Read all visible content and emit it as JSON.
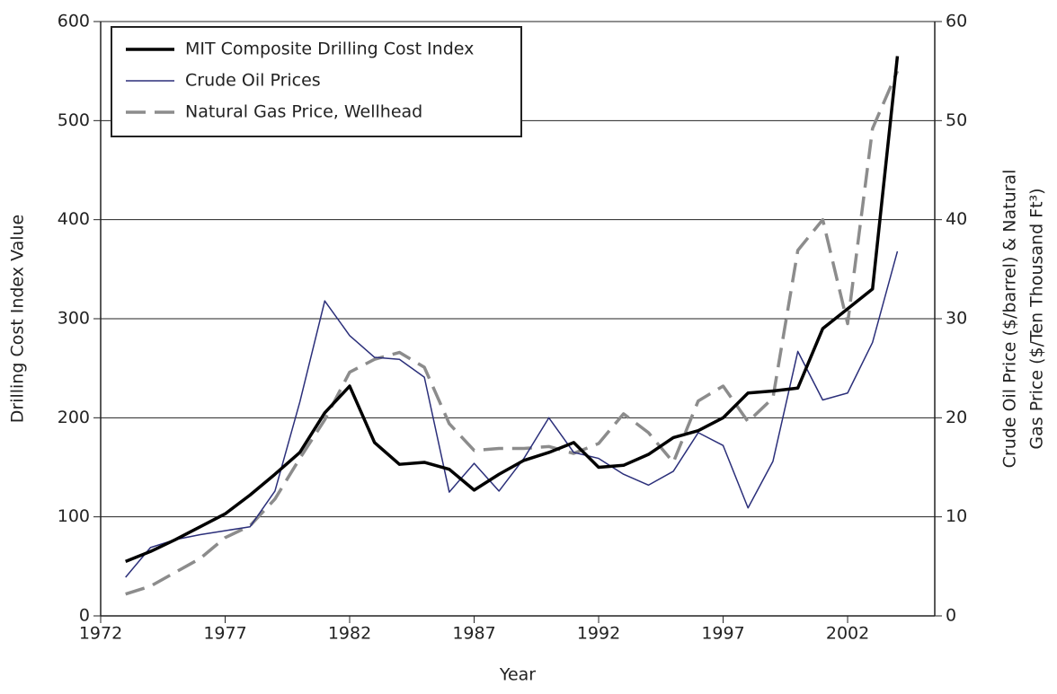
{
  "chart_data": {
    "type": "line",
    "xlabel": "Year",
    "ylabel": "Drilling Cost Index Value",
    "y2label": [
      "Crude Oil Price ($/barrel) & Natural",
      "Gas Price ($/Ten Thousand Ft³)"
    ],
    "x": [
      1973,
      1974,
      1975,
      1976,
      1977,
      1978,
      1979,
      1980,
      1981,
      1982,
      1983,
      1984,
      1985,
      1986,
      1987,
      1988,
      1989,
      1990,
      1991,
      1992,
      1993,
      1994,
      1995,
      1996,
      1997,
      1998,
      1999,
      2000,
      2001,
      2002,
      2003,
      2004
    ],
    "xlim": [
      1972,
      2005.5
    ],
    "xticks": [
      1972,
      1977,
      1982,
      1987,
      1992,
      1997,
      2002
    ],
    "ylim": [
      0,
      600
    ],
    "yticks": [
      0,
      100,
      200,
      300,
      400,
      500,
      600
    ],
    "y2lim": [
      0,
      60
    ],
    "y2ticks": [
      0,
      10,
      20,
      30,
      40,
      50,
      60
    ],
    "grid": true,
    "legend": "upper left",
    "series": [
      {
        "name": "MIT Composite Drilling Cost Index",
        "color": "#000000",
        "style": "solid",
        "width": 3.5,
        "values": [
          55,
          65,
          77,
          90,
          103,
          122,
          143,
          165,
          205,
          232,
          175,
          153,
          155,
          148,
          127,
          143,
          157,
          165,
          175,
          150,
          152,
          163,
          180,
          187,
          200,
          225,
          227,
          230,
          290,
          310,
          330,
          565
        ]
      },
      {
        "name": "Crude Oil Prices",
        "color": "#2b2f7a",
        "style": "solid",
        "width": 1.5,
        "axis": "y2",
        "values": [
          3.9,
          6.9,
          7.7,
          8.2,
          8.6,
          9.0,
          12.6,
          21.6,
          31.8,
          28.3,
          26.1,
          25.9,
          24.1,
          12.5,
          15.4,
          12.6,
          15.9,
          20.0,
          16.5,
          15.9,
          14.3,
          13.2,
          14.6,
          18.5,
          17.2,
          10.9,
          15.6,
          26.7,
          21.8,
          22.5,
          27.6,
          36.8
        ]
      },
      {
        "name": "Natural Gas Price, Wellhead",
        "color": "#8c8c8c",
        "style": "dashed",
        "width": 3.5,
        "axis": "y2",
        "values": [
          2.2,
          3.0,
          4.4,
          5.8,
          7.9,
          9.1,
          11.8,
          15.9,
          19.8,
          24.6,
          25.9,
          26.6,
          25.1,
          19.4,
          16.7,
          16.9,
          16.9,
          17.1,
          16.4,
          17.4,
          20.4,
          18.5,
          15.5,
          21.7,
          23.2,
          19.6,
          22.0,
          36.9,
          40.0,
          29.5,
          49.2,
          55.0
        ]
      }
    ]
  }
}
